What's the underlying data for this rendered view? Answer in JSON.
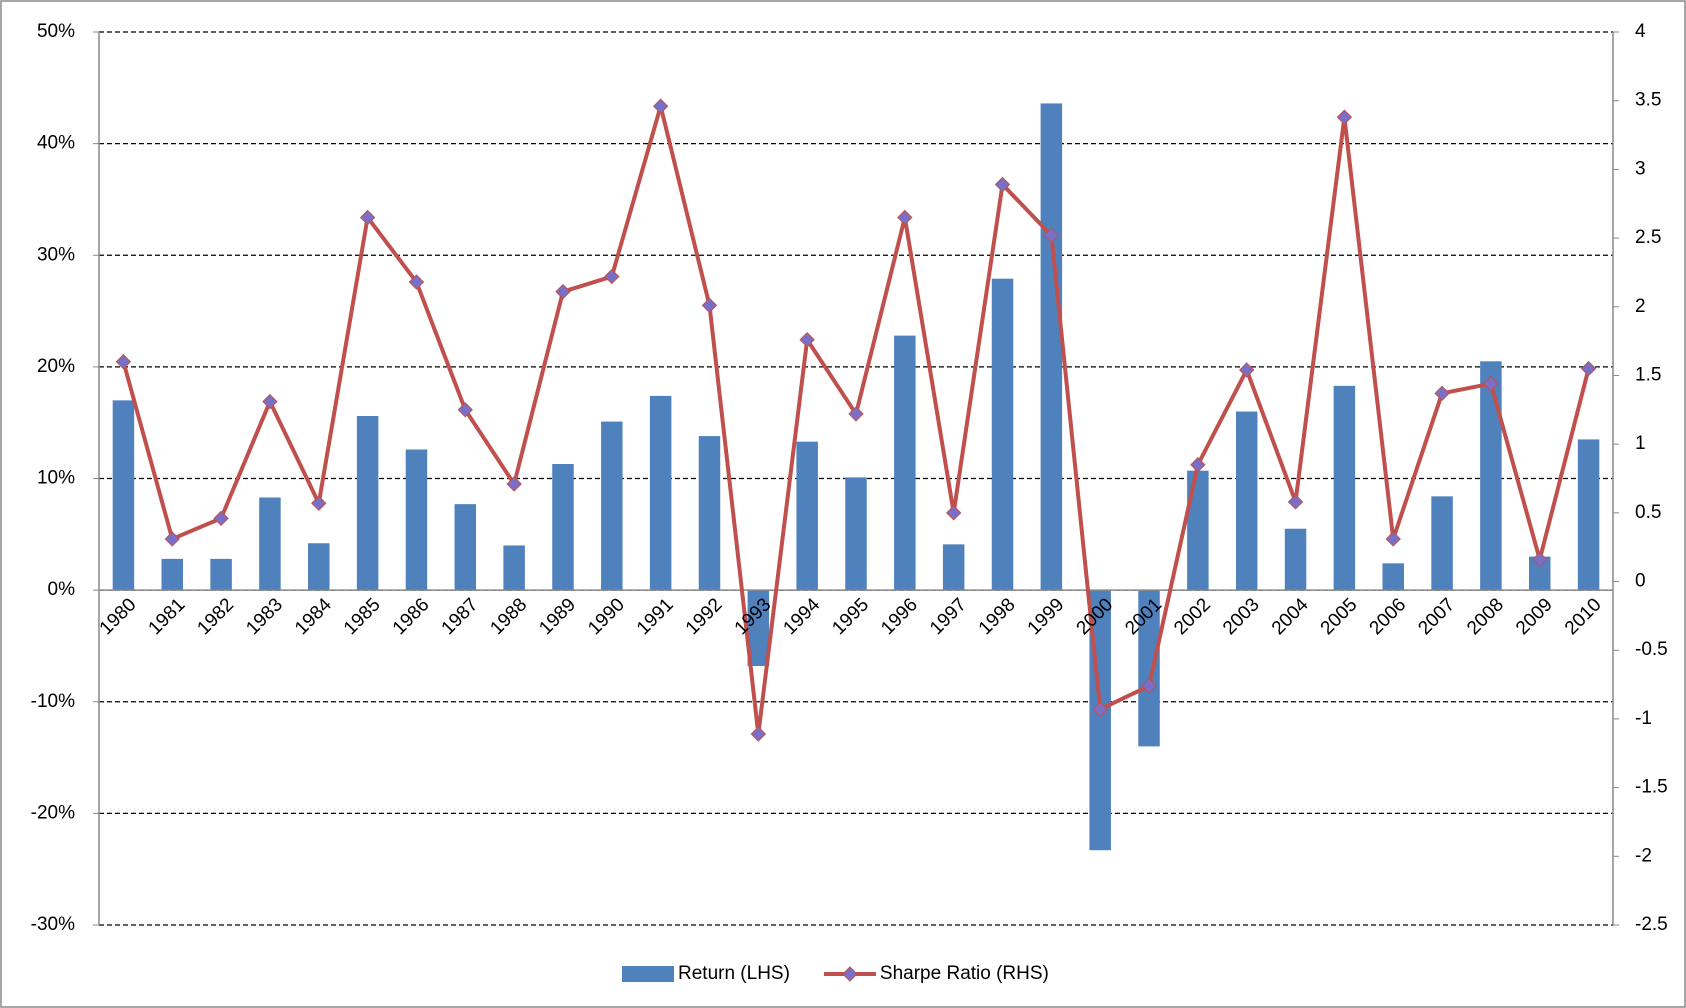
{
  "chart_data": {
    "type": "combo",
    "categories": [
      "1980",
      "1981",
      "1982",
      "1983",
      "1984",
      "1985",
      "1986",
      "1987",
      "1988",
      "1989",
      "1990",
      "1991",
      "1992",
      "1993",
      "1994",
      "1995",
      "1996",
      "1997",
      "1998",
      "1999",
      "2000",
      "2001",
      "2002",
      "2003",
      "2004",
      "2005",
      "2006",
      "2007",
      "2008",
      "2009",
      "2010"
    ],
    "series": [
      {
        "name": "Return (LHS)",
        "type": "bar",
        "color": "#4f81bd",
        "values": [
          17.0,
          2.8,
          2.8,
          8.3,
          4.2,
          15.6,
          12.6,
          7.7,
          4.0,
          11.3,
          15.1,
          17.4,
          13.8,
          -6.8,
          13.3,
          10.1,
          22.8,
          4.1,
          27.9,
          43.6,
          -23.3,
          -14.0,
          10.7,
          16.0,
          5.5,
          18.3,
          2.4,
          8.4,
          20.5,
          3.0,
          13.5
        ]
      },
      {
        "name": "Sharpe Ratio (RHS)",
        "type": "line",
        "axis": "y2",
        "color": "#c0504d",
        "marker_color": "#7a6fc6",
        "values": [
          1.6,
          0.31,
          0.46,
          1.31,
          0.57,
          2.65,
          2.18,
          1.25,
          0.71,
          2.11,
          2.22,
          3.46,
          2.01,
          -1.11,
          1.76,
          1.22,
          2.65,
          0.5,
          2.89,
          2.52,
          -0.93,
          -0.76,
          0.85,
          1.54,
          0.58,
          3.38,
          0.31,
          1.37,
          1.44,
          0.16,
          1.55
        ]
      }
    ],
    "ylim": [
      -30,
      50
    ],
    "yticks": [
      {
        "value": -30,
        "label": "-30%"
      },
      {
        "value": -20,
        "label": "-20%"
      },
      {
        "value": -10,
        "label": "-10%"
      },
      {
        "value": 0,
        "label": "0%"
      },
      {
        "value": 10,
        "label": "10%"
      },
      {
        "value": 20,
        "label": "20%"
      },
      {
        "value": 30,
        "label": "30%"
      },
      {
        "value": 40,
        "label": "40%"
      },
      {
        "value": 50,
        "label": "50%"
      }
    ],
    "y2lim": [
      -2.5,
      4
    ],
    "y2ticks": [
      -2.5,
      -2,
      -1.5,
      -1,
      -0.5,
      0,
      0.5,
      1,
      1.5,
      2,
      2.5,
      3,
      3.5,
      4
    ],
    "grid": true,
    "legend": "bottom"
  }
}
